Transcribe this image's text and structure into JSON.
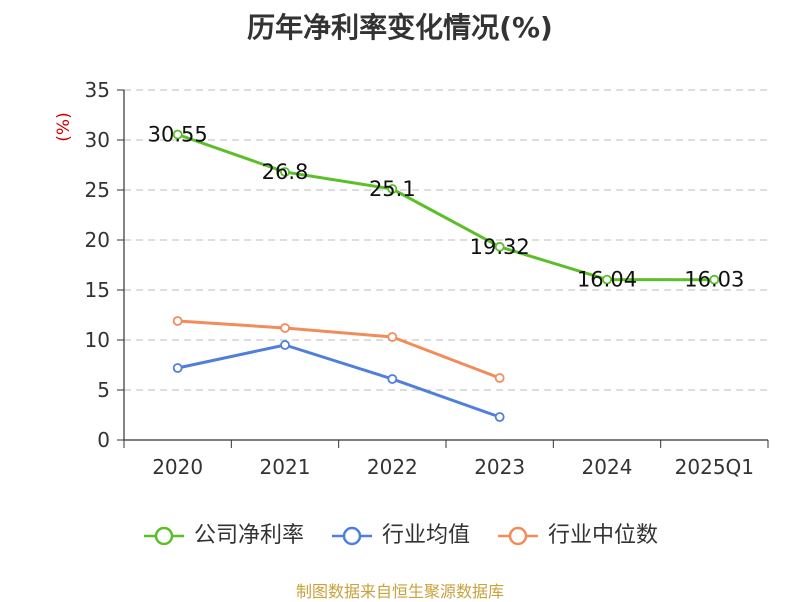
{
  "title": "历年净利率变化情况(%)",
  "source": "制图数据来自恒生聚源数据库",
  "colors": {
    "company": "#5cbf2a",
    "industry_avg": "#4f7fdb",
    "industry_median": "#f28c5a",
    "axis": "#333333",
    "grid": "#bbbbbb",
    "unit": "#cc0000"
  },
  "chart_data": {
    "type": "line",
    "title": "历年净利率变化情况(%)",
    "xlabel": "",
    "ylabel": "(%)",
    "ylim": [
      0,
      35
    ],
    "yticks": [
      0,
      5,
      10,
      15,
      20,
      25,
      30,
      35
    ],
    "categories": [
      "2020",
      "2021",
      "2022",
      "2023",
      "2024",
      "2025Q1"
    ],
    "grid": true,
    "legend_position": "bottom",
    "series": [
      {
        "name": "公司净利率",
        "key": "company",
        "values": [
          30.55,
          26.8,
          25.1,
          19.32,
          16.04,
          16.03
        ],
        "labels": [
          "30.55",
          "26.8",
          "25.1",
          "19.32",
          "16.04",
          "16.03"
        ],
        "show_labels": true
      },
      {
        "name": "行业均值",
        "key": "industry_avg",
        "values": [
          7.2,
          9.5,
          6.1,
          2.3,
          null,
          null
        ],
        "show_labels": false
      },
      {
        "name": "行业中位数",
        "key": "industry_median",
        "values": [
          11.9,
          11.2,
          10.3,
          6.2,
          null,
          null
        ],
        "show_labels": false
      }
    ]
  }
}
